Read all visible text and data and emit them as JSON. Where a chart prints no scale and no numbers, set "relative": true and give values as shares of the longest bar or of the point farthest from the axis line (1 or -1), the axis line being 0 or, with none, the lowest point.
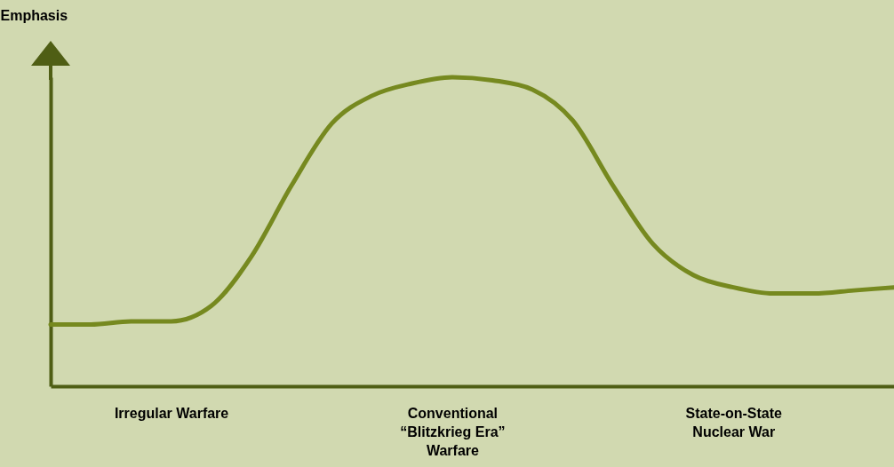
{
  "chart_data": {
    "type": "line",
    "relative": true,
    "ylabel": "Emphasis",
    "categories": [
      null,
      null,
      null,
      "Irregular Warfare",
      null,
      null,
      null,
      null,
      null,
      null,
      "Conventional\n“Blitzkrieg Era”\nWarfare",
      null,
      null,
      null,
      null,
      null,
      null,
      "State-on-State\nNuclear War",
      null,
      null,
      null,
      null
    ],
    "series": [
      {
        "color": "#76891f",
        "values": [
          0.2,
          0.2,
          0.21,
          0.21,
          0.26,
          0.42,
          0.65,
          0.85,
          0.94,
          0.98,
          1,
          0.99,
          0.96,
          0.86,
          0.65,
          0.46,
          0.36,
          0.32,
          0.3,
          0.3,
          0.31,
          0.32
        ]
      }
    ],
    "grid": false,
    "legend": false,
    "marker": "none"
  }
}
